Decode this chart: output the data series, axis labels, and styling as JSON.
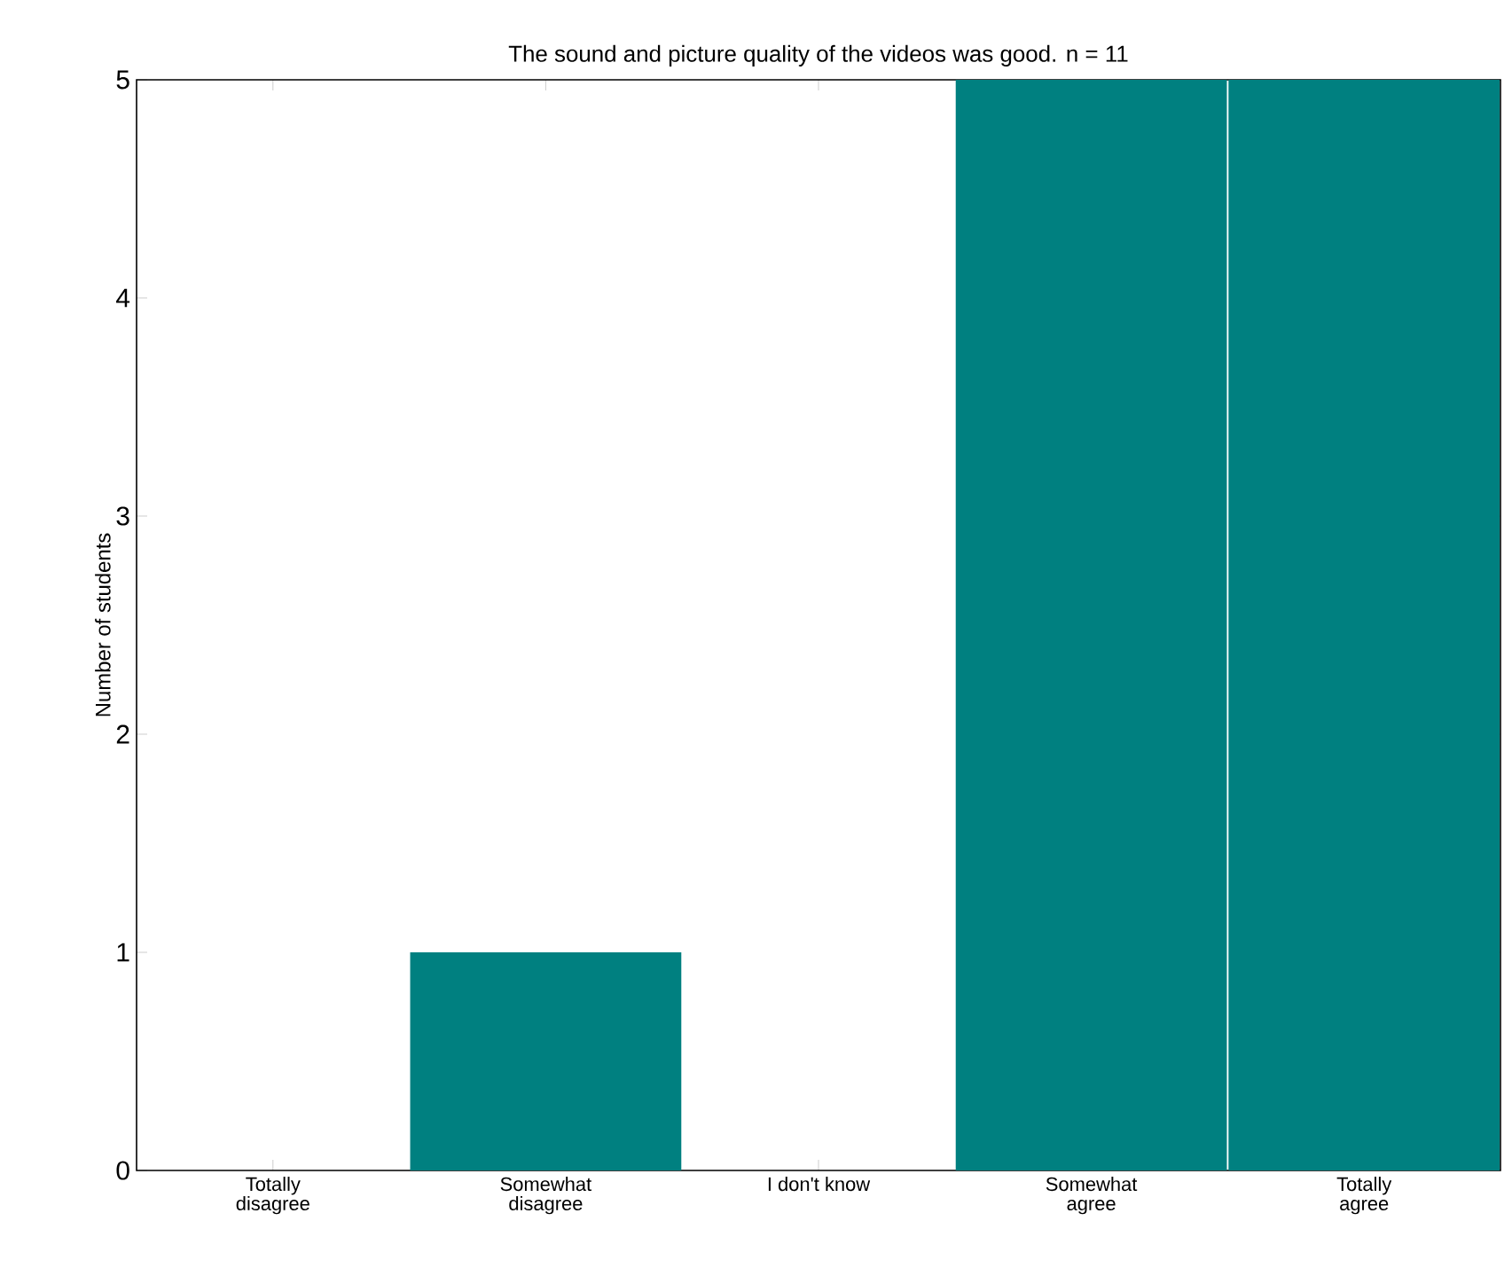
{
  "chart_data": {
    "type": "bar",
    "title": "The sound and picture quality of the videos was good. n = 11",
    "ylabel": "Number of students",
    "categories": [
      "Totally\ndisagree",
      "Somewhat\ndisagree",
      "I don't know",
      "Somewhat\nagree",
      "Totally\nagree"
    ],
    "values": [
      0,
      1,
      0,
      5,
      5
    ],
    "color": "#008080",
    "ylim": [
      0,
      5
    ],
    "yticks": [
      0,
      1,
      2,
      3,
      4,
      5
    ],
    "grid": false
  }
}
